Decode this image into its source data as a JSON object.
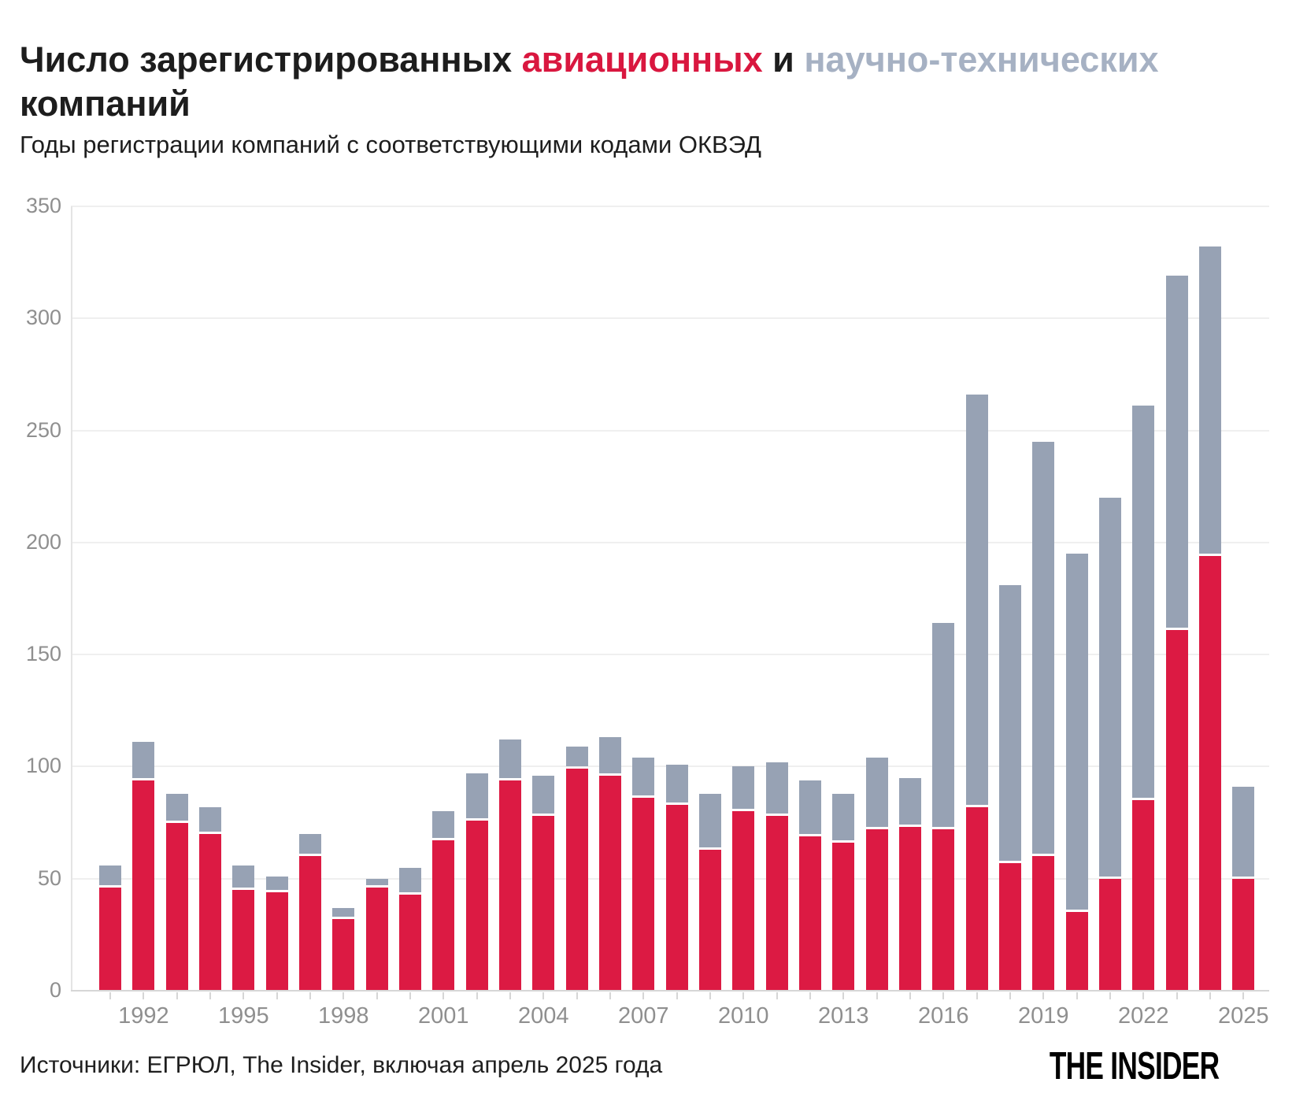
{
  "title": {
    "prefix": "Число зарегистрированных",
    "highlight_aviation": "авиационных",
    "connector": "и",
    "highlight_scitech": "научно-технических",
    "suffix": "компаний"
  },
  "subtitle": "Годы регистрации компаний с соответствующими кодами ОКВЭД",
  "source": "Источники: ЕГРЮЛ, The Insider, включая апрель 2025 года",
  "logo": "THE INSIDER",
  "colors": {
    "aviation": "#dc1a43",
    "scitech": "#97a2b4",
    "title_aviation": "#d9173f",
    "title_scitech": "#a6b1c3",
    "axis_label": "#8f8f8f",
    "gridline": "#efefef",
    "axis_line": "#d6d6d6"
  },
  "chart_data": {
    "type": "bar",
    "stacked": true,
    "title": "Число зарегистрированных авиационных и научно-технических компаний",
    "xlabel": "",
    "ylabel": "",
    "ylim": [
      0,
      350
    ],
    "y_ticks": [
      0,
      50,
      100,
      150,
      200,
      250,
      300,
      350
    ],
    "grid": true,
    "legend_position": "in-title",
    "x": [
      1991,
      1992,
      1993,
      1994,
      1995,
      1996,
      1997,
      1998,
      1999,
      2000,
      2001,
      2002,
      2003,
      2004,
      2005,
      2006,
      2007,
      2008,
      2009,
      2010,
      2011,
      2012,
      2013,
      2014,
      2015,
      2016,
      2017,
      2018,
      2019,
      2020,
      2021,
      2022,
      2023,
      2024,
      2025
    ],
    "x_tick_labels": [
      "1992",
      "1995",
      "1998",
      "2001",
      "2004",
      "2007",
      "2010",
      "2013",
      "2016",
      "2019",
      "2022",
      "2025"
    ],
    "series": [
      {
        "name": "авиационные",
        "color_key": "aviation",
        "values": [
          46,
          94,
          75,
          70,
          45,
          44,
          60,
          32,
          46,
          43,
          67,
          76,
          94,
          78,
          99,
          96,
          86,
          83,
          63,
          80,
          78,
          69,
          66,
          72,
          73,
          72,
          82,
          57,
          60,
          35,
          50,
          85,
          161,
          194,
          50
        ]
      },
      {
        "name": "научно-технические",
        "color_key": "scitech",
        "values": [
          10,
          17,
          13,
          12,
          11,
          7,
          10,
          5,
          4,
          12,
          13,
          21,
          18,
          18,
          10,
          17,
          18,
          18,
          25,
          20,
          24,
          25,
          22,
          32,
          22,
          92,
          184,
          124,
          185,
          160,
          170,
          176,
          158,
          138,
          41
        ]
      }
    ],
    "totals": [
      56,
      111,
      88,
      82,
      56,
      51,
      70,
      37,
      50,
      55,
      80,
      97,
      112,
      96,
      109,
      113,
      104,
      101,
      88,
      100,
      102,
      94,
      88,
      104,
      95,
      164,
      266,
      181,
      245,
      195,
      220,
      261,
      319,
      332,
      91
    ]
  }
}
